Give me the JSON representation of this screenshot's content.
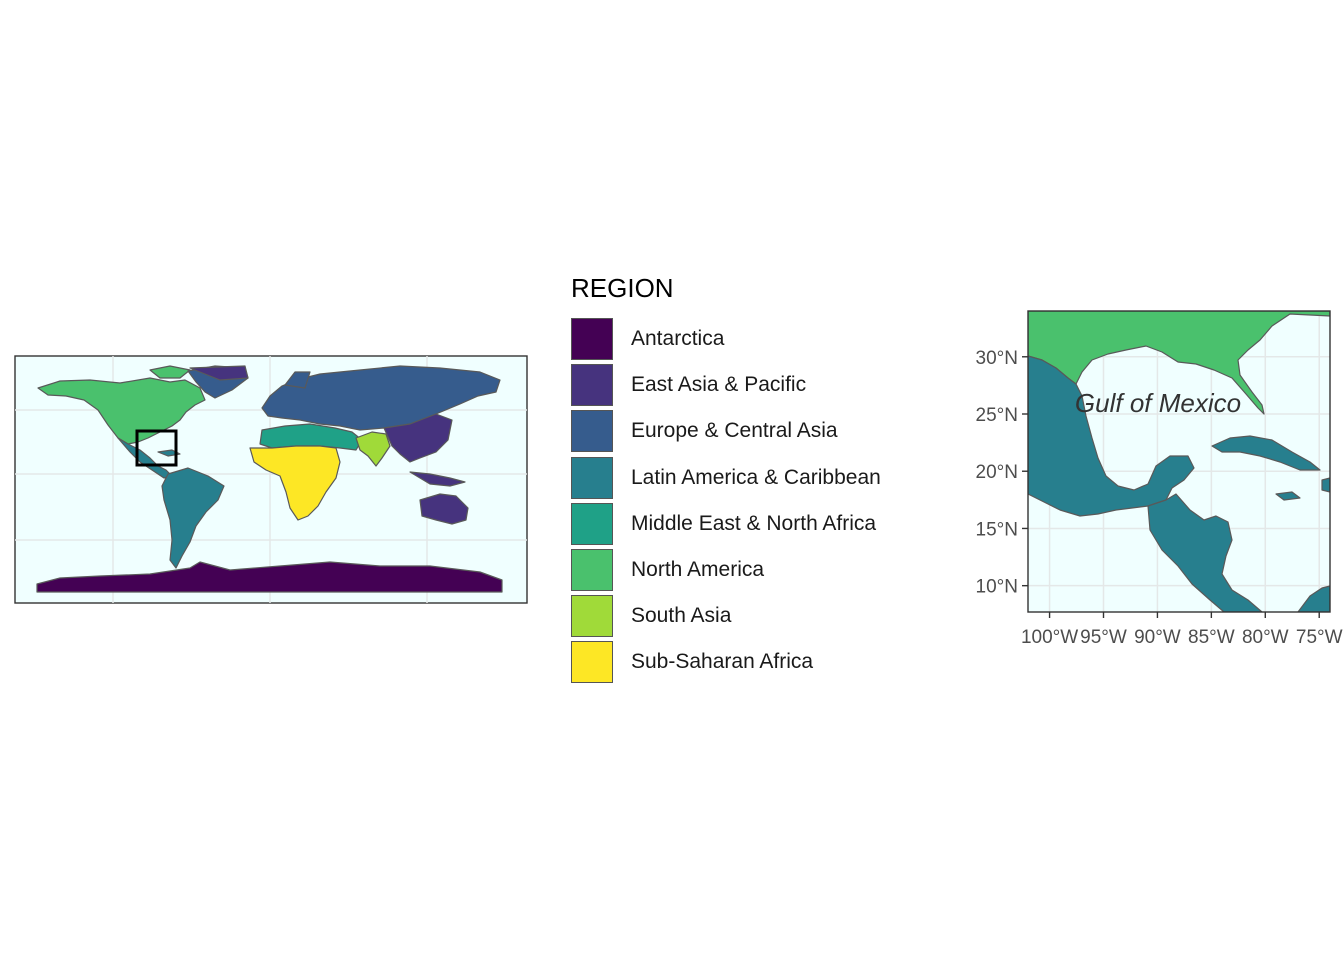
{
  "legend": {
    "title": "REGION",
    "items": [
      {
        "label": "Antarctica",
        "color": "#440154"
      },
      {
        "label": "East Asia & Pacific",
        "color": "#46337e"
      },
      {
        "label": "Europe & Central Asia",
        "color": "#365c8d"
      },
      {
        "label": "Latin America & Caribbean",
        "color": "#277f8e"
      },
      {
        "label": "Middle East & North Africa",
        "color": "#1fa187"
      },
      {
        "label": "North America",
        "color": "#4ac16d"
      },
      {
        "label": "South Asia",
        "color": "#a0da39"
      },
      {
        "label": "Sub-Saharan Africa",
        "color": "#fde725"
      }
    ]
  },
  "world_map": {
    "ocean_color": "#f0ffff",
    "border_color": "#595959",
    "highlight_box": {
      "lon": [
        -100,
        -75
      ],
      "lat": [
        8,
        34
      ]
    }
  },
  "inset_map": {
    "annotation": "Gulf of Mexico",
    "x_ticks": [
      "100°W",
      "95°W",
      "90°W",
      "85°W",
      "80°W",
      "75°W"
    ],
    "y_ticks": [
      "10°N",
      "15°N",
      "20°N",
      "25°N",
      "30°N"
    ],
    "x_range": [
      -102,
      -74
    ],
    "y_range": [
      7.7,
      34
    ]
  }
}
